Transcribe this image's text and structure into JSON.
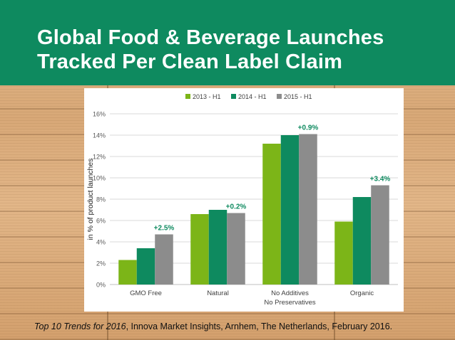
{
  "header": {
    "title_line1": "Global Food & Beverage Launches",
    "title_line2": "Tracked Per Clean Label Claim",
    "background": "#0e8a5f"
  },
  "source": {
    "italic": "Top 10 Trends for 2016",
    "rest": ", Innova Market Insights, Arnhem, The Netherlands, February 2016."
  },
  "chart_data": {
    "type": "bar",
    "ylabel": "in % of product launches",
    "xlabel": "",
    "ylim": [
      0,
      16
    ],
    "y_ticks": [
      "0%",
      "2%",
      "4%",
      "6%",
      "8%",
      "10%",
      "12%",
      "14%",
      "16%"
    ],
    "grid": true,
    "legend_position": "top-center",
    "categories": [
      [
        "GMO Free"
      ],
      [
        "Natural"
      ],
      [
        "No Additives",
        "No Preservatives"
      ],
      [
        "Organic"
      ]
    ],
    "series": [
      {
        "name": "2013 - H1",
        "color": "#7cb518",
        "values": [
          2.3,
          6.6,
          13.2,
          5.9
        ]
      },
      {
        "name": "2014 - H1",
        "color": "#0e8a5f",
        "values": [
          3.4,
          7.0,
          14.0,
          8.2
        ]
      },
      {
        "name": "2015 - H1",
        "color": "#8c8c8c",
        "values": [
          4.7,
          6.7,
          14.1,
          9.3
        ]
      }
    ],
    "annotations": [
      "+2.5%",
      "+0.2%",
      "+0.9%",
      "+3.4%"
    ],
    "annotation_color": "#0e8a5f"
  }
}
